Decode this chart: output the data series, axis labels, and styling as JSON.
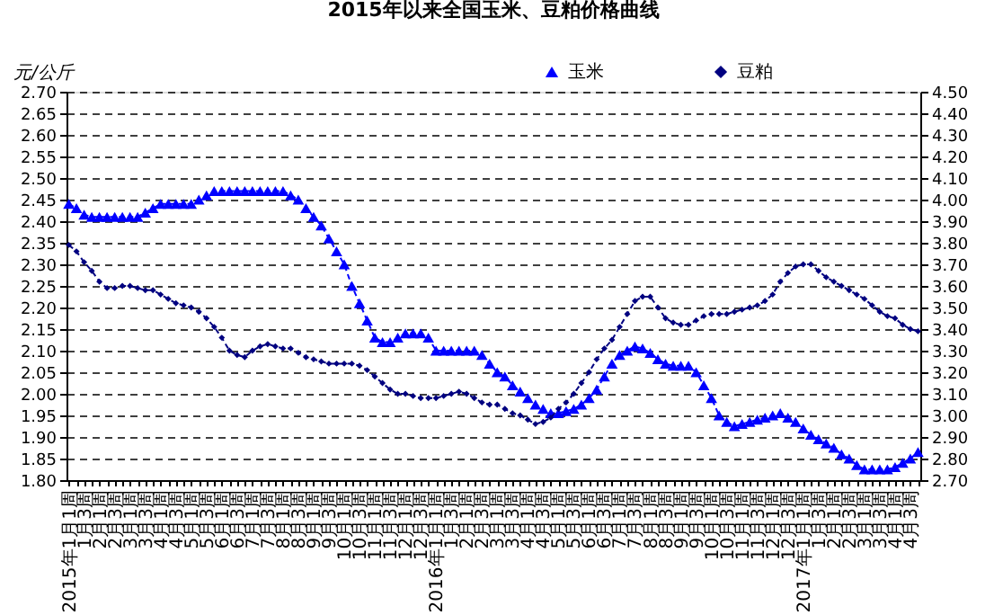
{
  "chart_data": {
    "type": "line",
    "title": "2015年以来全国玉米、豆粕价格曲线",
    "ylabel": "元/公斤",
    "categories": [
      "2015年1月1周",
      null,
      "1月3周",
      null,
      "2月1周",
      null,
      "2月3周",
      null,
      "3月1周",
      null,
      "3月3周",
      null,
      "4月1周",
      null,
      "4月3周",
      null,
      "5月1周",
      null,
      "5月3周",
      null,
      "6月1周",
      null,
      "6月3周",
      null,
      "7月1周",
      null,
      "7月3周",
      null,
      "8月1周",
      null,
      "8月3周",
      null,
      "9月1周",
      null,
      "9月3周",
      null,
      "10月1周",
      null,
      "10月3周",
      null,
      "11月1周",
      null,
      "11月3周",
      null,
      "12月1周",
      null,
      "12月3周",
      null,
      "2016年1月1周",
      null,
      "1月3周",
      null,
      "2月1周",
      null,
      "2月3周",
      null,
      "3月1周",
      null,
      "3月3周",
      null,
      "4月1周",
      null,
      "4月3周",
      null,
      "5月1周",
      null,
      "5月3周",
      null,
      "6月1周",
      null,
      "6月3周",
      null,
      "7月1周",
      null,
      "7月3周",
      null,
      "8月1周",
      null,
      "8月3周",
      null,
      "9月1周",
      null,
      "9月3周",
      null,
      "10月1周",
      null,
      "10月3周",
      null,
      "11月1周",
      null,
      "11月3周",
      null,
      "12月1周",
      null,
      "12月3周",
      null,
      "2017年1月1周",
      null,
      "1月3周",
      null,
      "2月1周",
      null,
      "2月3周",
      null,
      "3月1周",
      null,
      "3月3周",
      null,
      "4月1周",
      null,
      "4月3周",
      null
    ],
    "ylim": [
      1.8,
      2.7
    ],
    "yticks": [
      {
        "value": 1.8,
        "label": "1.80"
      },
      1.85,
      {
        "value": 1.9,
        "label": "1.90"
      },
      1.95,
      {
        "value": 2.0,
        "label": "2.00"
      },
      2.05,
      {
        "value": 2.1,
        "label": "2.10"
      },
      2.15,
      {
        "value": 2.2,
        "label": "2.20"
      },
      2.25,
      {
        "value": 2.3,
        "label": "2.30"
      },
      2.35,
      {
        "value": 2.4,
        "label": "2.40"
      },
      2.45,
      {
        "value": 2.5,
        "label": "2.50"
      },
      2.55,
      {
        "value": 2.6,
        "label": "2.60"
      },
      2.65,
      {
        "value": 2.7,
        "label": "2.70"
      }
    ],
    "y2lim": [
      2.7,
      4.5
    ],
    "y2ticks": [
      {
        "value": 2.7,
        "label": "2.70"
      },
      {
        "value": 2.8,
        "label": "2.80"
      },
      {
        "value": 2.9,
        "label": "2.90"
      },
      {
        "value": 3.0,
        "label": "3.00"
      },
      {
        "value": 3.1,
        "label": "3.10"
      },
      {
        "value": 3.2,
        "label": "3.20"
      },
      {
        "value": 3.3,
        "label": "3.30"
      },
      {
        "value": 3.4,
        "label": "3.40"
      },
      {
        "value": 3.5,
        "label": "3.50"
      },
      {
        "value": 3.6,
        "label": "3.60"
      },
      {
        "value": 3.7,
        "label": "3.70"
      },
      {
        "value": 3.8,
        "label": "3.80"
      },
      {
        "value": 3.9,
        "label": "3.90"
      },
      {
        "value": 4.0,
        "label": "4.00"
      },
      {
        "value": 4.1,
        "label": "4.10"
      },
      {
        "value": 4.2,
        "label": "4.20"
      },
      {
        "value": 4.3,
        "label": "4.30"
      },
      {
        "value": 4.4,
        "label": "4.40"
      },
      {
        "value": 4.5,
        "label": "4.50"
      }
    ],
    "grid": "y",
    "legend": "top right",
    "series": [
      {
        "name": "玉米",
        "color": "#0000ff",
        "marker": "triangle",
        "line_style": "dashed",
        "axis": "y",
        "values": [
          2.44,
          2.43,
          2.415,
          2.41,
          2.41,
          2.41,
          2.41,
          2.41,
          2.41,
          2.41,
          2.42,
          2.43,
          2.44,
          2.44,
          2.44,
          2.44,
          2.44,
          2.45,
          2.46,
          2.47,
          2.47,
          2.47,
          2.47,
          2.47,
          2.47,
          2.47,
          2.47,
          2.47,
          2.47,
          2.46,
          2.45,
          2.43,
          2.41,
          2.39,
          2.36,
          2.33,
          2.3,
          2.25,
          2.21,
          2.17,
          2.13,
          2.12,
          2.12,
          2.13,
          2.14,
          2.14,
          2.14,
          2.13,
          2.1,
          2.1,
          2.1,
          2.1,
          2.1,
          2.1,
          2.09,
          2.07,
          2.05,
          2.04,
          2.02,
          2.005,
          1.99,
          1.975,
          1.965,
          1.955,
          1.955,
          1.96,
          1.965,
          1.975,
          1.99,
          2.01,
          2.04,
          2.07,
          2.09,
          2.1,
          2.11,
          2.105,
          2.095,
          2.08,
          2.07,
          2.065,
          2.065,
          2.065,
          2.05,
          2.02,
          1.99,
          1.95,
          1.935,
          1.925,
          1.93,
          1.935,
          1.94,
          1.945,
          1.95,
          1.955,
          1.945,
          1.935,
          1.92,
          1.905,
          1.895,
          1.885,
          1.875,
          1.86,
          1.85,
          1.835,
          1.825,
          1.825,
          1.825,
          1.825,
          1.83,
          1.84,
          1.85,
          1.865
        ]
      },
      {
        "name": "豆粕",
        "color": "#000080",
        "marker": "diamond",
        "line_style": "dashed",
        "axis": "y2",
        "values": [
          3.79,
          3.76,
          3.71,
          3.67,
          3.62,
          3.59,
          3.59,
          3.6,
          3.6,
          3.59,
          3.58,
          3.58,
          3.56,
          3.54,
          3.52,
          3.51,
          3.5,
          3.48,
          3.45,
          3.41,
          3.36,
          3.3,
          3.28,
          3.27,
          3.3,
          3.32,
          3.33,
          3.32,
          3.31,
          3.31,
          3.29,
          3.27,
          3.26,
          3.25,
          3.24,
          3.24,
          3.24,
          3.24,
          3.23,
          3.21,
          3.18,
          3.15,
          3.12,
          3.1,
          3.1,
          3.09,
          3.08,
          3.08,
          3.08,
          3.09,
          3.1,
          3.11,
          3.1,
          3.08,
          3.06,
          3.05,
          3.05,
          3.03,
          3.01,
          3.0,
          2.98,
          2.96,
          2.97,
          2.99,
          3.03,
          3.06,
          3.1,
          3.15,
          3.2,
          3.26,
          3.31,
          3.35,
          3.41,
          3.47,
          3.53,
          3.55,
          3.55,
          3.5,
          3.45,
          3.43,
          3.42,
          3.42,
          3.44,
          3.46,
          3.47,
          3.47,
          3.47,
          3.48,
          3.49,
          3.5,
          3.51,
          3.53,
          3.56,
          3.62,
          3.66,
          3.69,
          3.7,
          3.7,
          3.67,
          3.64,
          3.62,
          3.6,
          3.58,
          3.56,
          3.54,
          3.51,
          3.48,
          3.46,
          3.45,
          3.42,
          3.4,
          3.39
        ]
      }
    ]
  }
}
